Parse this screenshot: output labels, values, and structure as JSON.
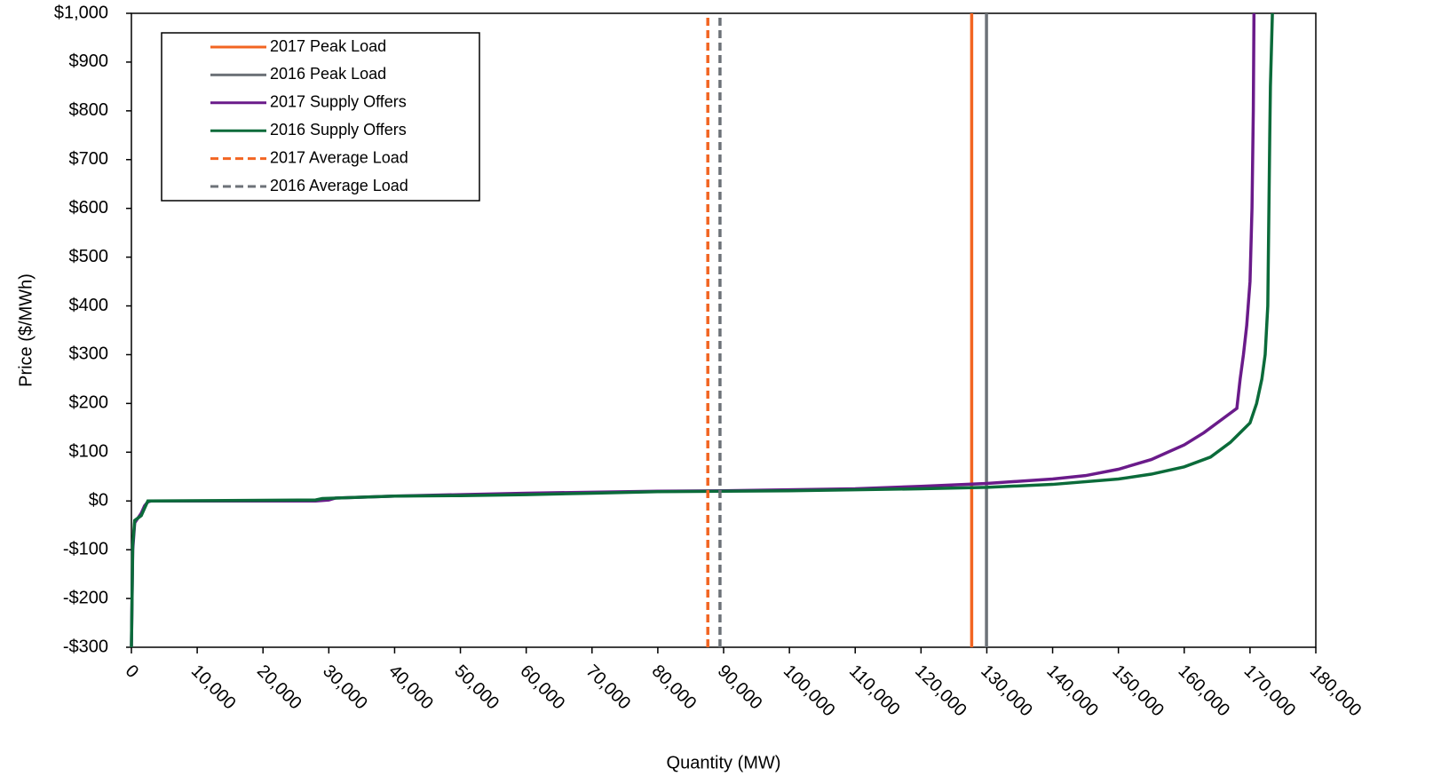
{
  "chart_data": {
    "type": "line",
    "ylabel": "Price ($/MWh)",
    "xlabel": "Quantity (MW)",
    "xlim": [
      0,
      180000
    ],
    "xticks": [
      0,
      {
        "value": 10000,
        "label": "10,000"
      },
      {
        "value": 20000,
        "label": "20,000"
      },
      {
        "value": 30000,
        "label": "30,000"
      },
      {
        "value": 40000,
        "label": "40,000"
      },
      {
        "value": 50000,
        "label": "50,000"
      },
      {
        "value": 60000,
        "label": "60,000"
      },
      {
        "value": 70000,
        "label": "70,000"
      },
      {
        "value": 80000,
        "label": "80,000"
      },
      {
        "value": 90000,
        "label": "90,000"
      },
      {
        "value": 100000,
        "label": "100,000"
      },
      {
        "value": 110000,
        "label": "110,000"
      },
      {
        "value": 120000,
        "label": "120,000"
      },
      {
        "value": 130000,
        "label": "130,000"
      },
      {
        "value": 140000,
        "label": "140,000"
      },
      {
        "value": 150000,
        "label": "150,000"
      },
      {
        "value": 160000,
        "label": "160,000"
      },
      {
        "value": 170000,
        "label": "170,000"
      },
      {
        "value": 180000,
        "label": "180,000"
      }
    ],
    "ylim": [
      -300,
      1000
    ],
    "yticks": [
      {
        "value": -300,
        "label": "-$300"
      },
      {
        "value": -200,
        "label": "-$200"
      },
      {
        "value": -100,
        "label": "-$100"
      },
      {
        "value": 0,
        "label": "$0"
      },
      {
        "value": 100,
        "label": "$100"
      },
      {
        "value": 200,
        "label": "$200"
      },
      {
        "value": 300,
        "label": "$300"
      },
      {
        "value": 400,
        "label": "$400"
      },
      {
        "value": 500,
        "label": "$500"
      },
      {
        "value": 600,
        "label": "$600"
      },
      {
        "value": 700,
        "label": "$700"
      },
      {
        "value": 800,
        "label": "$800"
      },
      {
        "value": 900,
        "label": "$900"
      },
      {
        "value": 1000,
        "label": "$1,000"
      }
    ],
    "grid": false,
    "legend": "upper left",
    "series": [
      {
        "name": "2017 Peak Load",
        "color": "#f26522",
        "dash": false,
        "x": [
          127700,
          127700
        ],
        "values": [
          -300,
          1000
        ]
      },
      {
        "name": "2016 Peak Load",
        "color": "#6d7278",
        "dash": false,
        "x": [
          129950,
          129950
        ],
        "values": [
          -300,
          1000
        ]
      },
      {
        "name": "2017 Supply Offers",
        "color": "#6a1b8a",
        "dash": false,
        "x": [
          0,
          200,
          500,
          1000,
          1500,
          2000,
          2500,
          3000,
          28000,
          30000,
          31000,
          40000,
          50000,
          60000,
          70000,
          80000,
          90000,
          100000,
          110000,
          120000,
          130000,
          140000,
          145000,
          150000,
          155000,
          160000,
          163000,
          166000,
          168000,
          168500,
          169000,
          169500,
          170000,
          170300,
          170500,
          170600
        ],
        "values": [
          -300,
          -100,
          -45,
          -35,
          -25,
          -10,
          -2,
          0,
          0,
          2,
          6,
          10,
          13,
          16,
          18,
          20,
          21,
          23,
          25,
          30,
          36,
          45,
          52,
          65,
          85,
          115,
          140,
          170,
          190,
          250,
          300,
          360,
          450,
          600,
          800,
          1000
        ]
      },
      {
        "name": "2016 Supply Offers",
        "color": "#0b6b3a",
        "dash": false,
        "x": [
          0,
          200,
          500,
          1500,
          2000,
          2500,
          28000,
          29000,
          40000,
          50000,
          60000,
          70000,
          80000,
          90000,
          100000,
          110000,
          120000,
          130000,
          140000,
          150000,
          155000,
          160000,
          164000,
          167000,
          170000,
          171000,
          171800,
          172300,
          172700,
          173000,
          173100,
          173400
        ],
        "values": [
          -300,
          -90,
          -40,
          -30,
          -15,
          0,
          2,
          5,
          10,
          11,
          13,
          16,
          19,
          20,
          21,
          23,
          25,
          28,
          34,
          45,
          55,
          70,
          90,
          120,
          160,
          200,
          250,
          300,
          400,
          750,
          850,
          1000
        ]
      },
      {
        "name": "2017 Average Load",
        "color": "#f26522",
        "dash": true,
        "x": [
          87600,
          87600
        ],
        "values": [
          -300,
          1000
        ]
      },
      {
        "name": "2016 Average Load",
        "color": "#6d7278",
        "dash": true,
        "x": [
          89450,
          89450
        ],
        "values": [
          -300,
          1000
        ]
      }
    ]
  }
}
